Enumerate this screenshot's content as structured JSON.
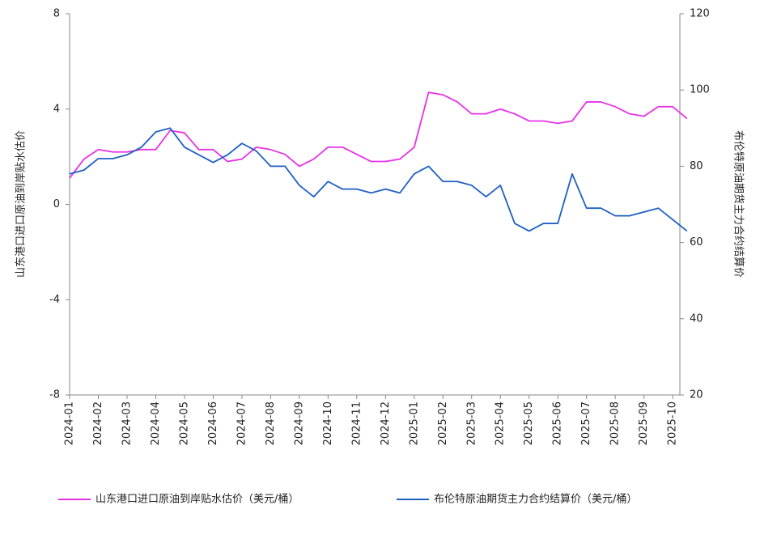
{
  "chart_data": {
    "type": "line",
    "y_label": "山东港口进口原油到岸贴水估价",
    "y2_label": "布伦特原油期货主力合约结算价",
    "categories": [
      "2024-01",
      null,
      "2024-02",
      null,
      "2024-03",
      null,
      "2024-04",
      null,
      "2024-05",
      null,
      "2024-06",
      null,
      "2024-07",
      null,
      "2024-08",
      null,
      "2024-09",
      null,
      "2024-10",
      null,
      "2024-11",
      null,
      "2024-12",
      null,
      "2025-01",
      null,
      "2025-02",
      null,
      "2025-03",
      null,
      "2025-04",
      null,
      "2025-05",
      null,
      "2025-06",
      null,
      "2025-07",
      null,
      "2025-08",
      null,
      "2025-09",
      null,
      "2025-10",
      null
    ],
    "series": [
      {
        "name": "山东港口进口原油到岸贴水估价（美元/桶）",
        "color": "#e632e6",
        "axis": "y",
        "values": [
          1.1,
          1.9,
          2.3,
          2.2,
          2.2,
          2.3,
          2.3,
          3.1,
          3.0,
          2.3,
          2.3,
          1.8,
          1.9,
          2.4,
          2.3,
          2.1,
          1.6,
          1.9,
          2.4,
          2.4,
          2.1,
          1.8,
          1.8,
          1.9,
          2.4,
          4.7,
          4.6,
          4.3,
          3.8,
          3.8,
          4.0,
          3.8,
          3.5,
          3.5,
          3.4,
          3.5,
          4.3,
          4.3,
          4.1,
          3.8,
          3.7,
          4.1,
          4.1,
          3.6
        ]
      },
      {
        "name": "布伦特原油期货主力合约结算价（美元/桶）",
        "color": "#1f5fc4",
        "axis": "y2",
        "values": [
          78,
          79,
          82,
          82,
          83,
          85,
          89,
          90,
          85,
          83,
          81,
          83,
          86,
          84,
          80,
          80,
          75,
          72,
          76,
          74,
          74,
          73,
          74,
          73,
          78,
          80,
          76,
          76,
          75,
          72,
          75,
          65,
          63,
          65,
          65,
          78,
          69,
          69,
          67,
          67,
          68,
          69,
          66,
          63
        ]
      }
    ],
    "ylim": [
      -8,
      8
    ],
    "yticks": [
      -8,
      -4,
      0,
      4,
      8
    ],
    "y2lim": [
      20,
      120
    ],
    "y2ticks": [
      20,
      40,
      60,
      80,
      100,
      120
    ],
    "legend": "bottom",
    "grid": false
  }
}
